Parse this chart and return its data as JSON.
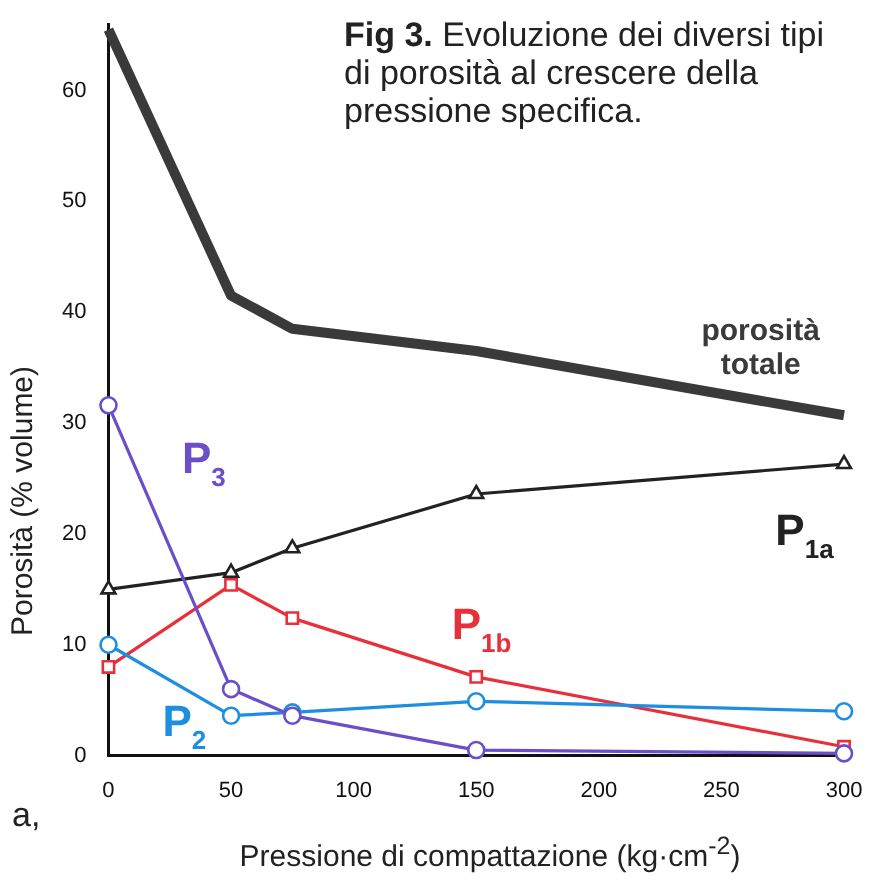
{
  "chart_data": {
    "type": "line",
    "title": "Fig 3. Evoluzione dei diversi tipi di porosità al crescere della pressione specifica.",
    "xlabel": "Pressione di compattazione (kg·cm$^{-2}$)",
    "ylabel": "Porosità (% volume)",
    "x": [
      0,
      50,
      75,
      150,
      300
    ],
    "series": [
      {
        "name": "porosità totale",
        "color": "#3a3a3a",
        "marker": "none",
        "values": [
          65.5,
          41.5,
          38.5,
          36.5,
          30.7
        ]
      },
      {
        "name": "P$_{1a}$",
        "color": "#222222",
        "marker": "triangle",
        "values": [
          15,
          16.5,
          18.7,
          23.6,
          26.3
        ]
      },
      {
        "name": "P$_{1b}$",
        "color": "#e8303a",
        "marker": "square",
        "values": [
          8,
          15.4,
          12.4,
          7.1,
          0.8
        ]
      },
      {
        "name": "P$_{2}$",
        "color": "#1e8fe0",
        "marker": "circle",
        "values": [
          10,
          3.6,
          3.9,
          4.9,
          4.0
        ]
      },
      {
        "name": "P$_{3}$",
        "color": "#6a4fc8",
        "marker": "circle",
        "values": [
          31.6,
          6,
          3.6,
          0.5,
          0.2
        ]
      }
    ],
    "annotations": [
      "a,"
    ],
    "xlim": [
      0,
      300
    ],
    "xticks": [
      0,
      50,
      100,
      150,
      200,
      250,
      300
    ],
    "ylim": [
      0,
      66
    ],
    "yticks": [
      0,
      10,
      20,
      30,
      40,
      50,
      60
    ],
    "grid": false,
    "legend": false,
    "line_style": "solid"
  }
}
